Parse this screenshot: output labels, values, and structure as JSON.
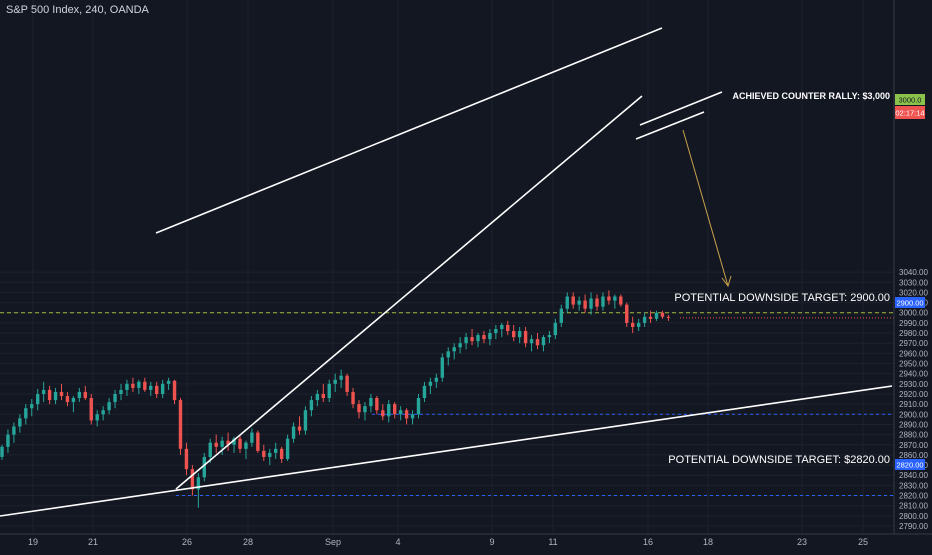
{
  "header": {
    "symbol_title": "S&P 500 Index, 240, OANDA"
  },
  "chart_data": {
    "type": "candlestick",
    "y_ticks": [
      2790,
      2800,
      2810,
      2820,
      2830,
      2840,
      2850,
      2860,
      2870,
      2880,
      2890,
      2900,
      2910,
      2920,
      2930,
      2940,
      2950,
      2960,
      2970,
      2980,
      2990,
      3000,
      3010,
      3020,
      3030,
      3040
    ],
    "y_tick_labels": [
      "2790.00",
      "2800.00",
      "2810.00",
      "2820.00",
      "2830.00",
      "2840.00",
      "2850.00",
      "2860.00",
      "2870.00",
      "2880.00",
      "2890.00",
      "2900.00",
      "2910.00",
      "2920.00",
      "2930.00",
      "2940.00",
      "2950.00",
      "2960.00",
      "2970.00",
      "2980.00",
      "2990.00",
      "3000.00",
      "3010.00",
      "3020.00",
      "3030.00",
      "3040.00"
    ],
    "ylim": [
      2785,
      3047
    ],
    "x_labels": [
      "19",
      "21",
      "26",
      "28",
      "Sep",
      "4",
      "9",
      "11",
      "16",
      "18",
      "23",
      "25"
    ],
    "price_levels": [
      {
        "value": 3000,
        "label": "3000.0",
        "color": "#8bc34a"
      },
      {
        "value": 2900,
        "label": "2900.00",
        "color": "#2962ff"
      },
      {
        "value": 2820,
        "label": "2820.00",
        "color": "#2962ff"
      }
    ],
    "current_price": {
      "value": 2995,
      "countdown": "02:17:14",
      "color": "#ef5350"
    },
    "annotations": [
      "ACHIEVED COUNTER RALLY: $3,000",
      "POTENTIAL DOWNSIDE TARGET: 2900.00",
      "POTENTIAL DOWNSIDE TARGET: $2820.00"
    ],
    "colors": {
      "up": "#26a69a",
      "down": "#ef5350",
      "background": "#131722",
      "grid": "#1e222d",
      "trendline": "#ffffff",
      "arrow": "#c8a24a",
      "rally_line": "#a5b83a",
      "target_line": "#2962ff"
    },
    "candles": [
      {
        "o": 2858,
        "h": 2870,
        "l": 2855,
        "c": 2868
      },
      {
        "o": 2868,
        "h": 2885,
        "l": 2862,
        "c": 2880
      },
      {
        "o": 2880,
        "h": 2892,
        "l": 2872,
        "c": 2888
      },
      {
        "o": 2888,
        "h": 2900,
        "l": 2882,
        "c": 2896
      },
      {
        "o": 2896,
        "h": 2910,
        "l": 2890,
        "c": 2906
      },
      {
        "o": 2906,
        "h": 2915,
        "l": 2898,
        "c": 2910
      },
      {
        "o": 2910,
        "h": 2925,
        "l": 2904,
        "c": 2920
      },
      {
        "o": 2920,
        "h": 2932,
        "l": 2912,
        "c": 2924
      },
      {
        "o": 2924,
        "h": 2928,
        "l": 2910,
        "c": 2914
      },
      {
        "o": 2914,
        "h": 2926,
        "l": 2910,
        "c": 2922
      },
      {
        "o": 2922,
        "h": 2930,
        "l": 2914,
        "c": 2918
      },
      {
        "o": 2918,
        "h": 2922,
        "l": 2908,
        "c": 2912
      },
      {
        "o": 2912,
        "h": 2918,
        "l": 2902,
        "c": 2916
      },
      {
        "o": 2916,
        "h": 2926,
        "l": 2912,
        "c": 2922
      },
      {
        "o": 2922,
        "h": 2928,
        "l": 2914,
        "c": 2916
      },
      {
        "o": 2916,
        "h": 2920,
        "l": 2890,
        "c": 2894
      },
      {
        "o": 2894,
        "h": 2904,
        "l": 2888,
        "c": 2900
      },
      {
        "o": 2900,
        "h": 2908,
        "l": 2894,
        "c": 2904
      },
      {
        "o": 2904,
        "h": 2916,
        "l": 2900,
        "c": 2912
      },
      {
        "o": 2912,
        "h": 2924,
        "l": 2906,
        "c": 2920
      },
      {
        "o": 2920,
        "h": 2930,
        "l": 2914,
        "c": 2924
      },
      {
        "o": 2924,
        "h": 2934,
        "l": 2918,
        "c": 2930
      },
      {
        "o": 2930,
        "h": 2936,
        "l": 2922,
        "c": 2926
      },
      {
        "o": 2926,
        "h": 2934,
        "l": 2920,
        "c": 2932
      },
      {
        "o": 2932,
        "h": 2936,
        "l": 2922,
        "c": 2924
      },
      {
        "o": 2924,
        "h": 2932,
        "l": 2918,
        "c": 2928
      },
      {
        "o": 2928,
        "h": 2932,
        "l": 2916,
        "c": 2920
      },
      {
        "o": 2920,
        "h": 2934,
        "l": 2916,
        "c": 2930
      },
      {
        "o": 2930,
        "h": 2936,
        "l": 2924,
        "c": 2933
      },
      {
        "o": 2933,
        "h": 2934,
        "l": 2910,
        "c": 2914
      },
      {
        "o": 2914,
        "h": 2916,
        "l": 2860,
        "c": 2866
      },
      {
        "o": 2866,
        "h": 2872,
        "l": 2840,
        "c": 2846
      },
      {
        "o": 2846,
        "h": 2850,
        "l": 2820,
        "c": 2826
      },
      {
        "o": 2826,
        "h": 2842,
        "l": 2808,
        "c": 2838
      },
      {
        "o": 2838,
        "h": 2862,
        "l": 2834,
        "c": 2858
      },
      {
        "o": 2858,
        "h": 2876,
        "l": 2852,
        "c": 2872
      },
      {
        "o": 2872,
        "h": 2880,
        "l": 2862,
        "c": 2868
      },
      {
        "o": 2868,
        "h": 2878,
        "l": 2860,
        "c": 2874
      },
      {
        "o": 2874,
        "h": 2882,
        "l": 2864,
        "c": 2870
      },
      {
        "o": 2870,
        "h": 2878,
        "l": 2862,
        "c": 2876
      },
      {
        "o": 2876,
        "h": 2880,
        "l": 2862,
        "c": 2866
      },
      {
        "o": 2866,
        "h": 2874,
        "l": 2856,
        "c": 2872
      },
      {
        "o": 2872,
        "h": 2886,
        "l": 2868,
        "c": 2882
      },
      {
        "o": 2882,
        "h": 2884,
        "l": 2862,
        "c": 2864
      },
      {
        "o": 2864,
        "h": 2870,
        "l": 2854,
        "c": 2858
      },
      {
        "o": 2858,
        "h": 2866,
        "l": 2850,
        "c": 2862
      },
      {
        "o": 2862,
        "h": 2872,
        "l": 2856,
        "c": 2866
      },
      {
        "o": 2866,
        "h": 2868,
        "l": 2852,
        "c": 2856
      },
      {
        "o": 2856,
        "h": 2880,
        "l": 2854,
        "c": 2876
      },
      {
        "o": 2876,
        "h": 2892,
        "l": 2872,
        "c": 2888
      },
      {
        "o": 2888,
        "h": 2898,
        "l": 2880,
        "c": 2884
      },
      {
        "o": 2884,
        "h": 2908,
        "l": 2880,
        "c": 2904
      },
      {
        "o": 2904,
        "h": 2918,
        "l": 2898,
        "c": 2914
      },
      {
        "o": 2914,
        "h": 2924,
        "l": 2908,
        "c": 2920
      },
      {
        "o": 2920,
        "h": 2930,
        "l": 2912,
        "c": 2916
      },
      {
        "o": 2916,
        "h": 2934,
        "l": 2912,
        "c": 2930
      },
      {
        "o": 2930,
        "h": 2940,
        "l": 2922,
        "c": 2934
      },
      {
        "o": 2934,
        "h": 2944,
        "l": 2926,
        "c": 2938
      },
      {
        "o": 2938,
        "h": 2940,
        "l": 2918,
        "c": 2922
      },
      {
        "o": 2922,
        "h": 2926,
        "l": 2906,
        "c": 2910
      },
      {
        "o": 2910,
        "h": 2914,
        "l": 2896,
        "c": 2902
      },
      {
        "o": 2902,
        "h": 2912,
        "l": 2894,
        "c": 2908
      },
      {
        "o": 2908,
        "h": 2920,
        "l": 2902,
        "c": 2916
      },
      {
        "o": 2916,
        "h": 2918,
        "l": 2900,
        "c": 2904
      },
      {
        "o": 2904,
        "h": 2910,
        "l": 2894,
        "c": 2898
      },
      {
        "o": 2898,
        "h": 2914,
        "l": 2892,
        "c": 2910
      },
      {
        "o": 2910,
        "h": 2912,
        "l": 2896,
        "c": 2900
      },
      {
        "o": 2900,
        "h": 2908,
        "l": 2894,
        "c": 2904
      },
      {
        "o": 2904,
        "h": 2906,
        "l": 2890,
        "c": 2896
      },
      {
        "o": 2896,
        "h": 2904,
        "l": 2890,
        "c": 2900
      },
      {
        "o": 2900,
        "h": 2920,
        "l": 2896,
        "c": 2916
      },
      {
        "o": 2916,
        "h": 2932,
        "l": 2912,
        "c": 2928
      },
      {
        "o": 2928,
        "h": 2936,
        "l": 2920,
        "c": 2932
      },
      {
        "o": 2932,
        "h": 2940,
        "l": 2926,
        "c": 2936
      },
      {
        "o": 2936,
        "h": 2960,
        "l": 2932,
        "c": 2956
      },
      {
        "o": 2956,
        "h": 2966,
        "l": 2948,
        "c": 2962
      },
      {
        "o": 2962,
        "h": 2970,
        "l": 2954,
        "c": 2966
      },
      {
        "o": 2966,
        "h": 2976,
        "l": 2960,
        "c": 2970
      },
      {
        "o": 2970,
        "h": 2980,
        "l": 2964,
        "c": 2976
      },
      {
        "o": 2976,
        "h": 2984,
        "l": 2968,
        "c": 2972
      },
      {
        "o": 2972,
        "h": 2980,
        "l": 2966,
        "c": 2978
      },
      {
        "o": 2978,
        "h": 2982,
        "l": 2970,
        "c": 2974
      },
      {
        "o": 2974,
        "h": 2984,
        "l": 2968,
        "c": 2980
      },
      {
        "o": 2980,
        "h": 2988,
        "l": 2974,
        "c": 2984
      },
      {
        "o": 2984,
        "h": 2990,
        "l": 2976,
        "c": 2988
      },
      {
        "o": 2988,
        "h": 2992,
        "l": 2978,
        "c": 2982
      },
      {
        "o": 2982,
        "h": 2988,
        "l": 2972,
        "c": 2976
      },
      {
        "o": 2976,
        "h": 2986,
        "l": 2970,
        "c": 2982
      },
      {
        "o": 2982,
        "h": 2986,
        "l": 2966,
        "c": 2970
      },
      {
        "o": 2970,
        "h": 2978,
        "l": 2962,
        "c": 2974
      },
      {
        "o": 2974,
        "h": 2980,
        "l": 2964,
        "c": 2968
      },
      {
        "o": 2968,
        "h": 2978,
        "l": 2962,
        "c": 2976
      },
      {
        "o": 2976,
        "h": 2982,
        "l": 2970,
        "c": 2978
      },
      {
        "o": 2978,
        "h": 2994,
        "l": 2974,
        "c": 2990
      },
      {
        "o": 2990,
        "h": 3008,
        "l": 2986,
        "c": 3004
      },
      {
        "o": 3004,
        "h": 3020,
        "l": 3000,
        "c": 3016
      },
      {
        "o": 3016,
        "h": 3020,
        "l": 3004,
        "c": 3008
      },
      {
        "o": 3008,
        "h": 3016,
        "l": 3002,
        "c": 3012
      },
      {
        "o": 3012,
        "h": 3018,
        "l": 3000,
        "c": 3004
      },
      {
        "o": 3004,
        "h": 3020,
        "l": 2998,
        "c": 3014
      },
      {
        "o": 3014,
        "h": 3018,
        "l": 3002,
        "c": 3006
      },
      {
        "o": 3006,
        "h": 3020,
        "l": 3002,
        "c": 3016
      },
      {
        "o": 3016,
        "h": 3022,
        "l": 3008,
        "c": 3012
      },
      {
        "o": 3012,
        "h": 3018,
        "l": 3004,
        "c": 3016
      },
      {
        "o": 3016,
        "h": 3018,
        "l": 3006,
        "c": 3008
      },
      {
        "o": 3008,
        "h": 3010,
        "l": 2986,
        "c": 2990
      },
      {
        "o": 2990,
        "h": 2996,
        "l": 2980,
        "c": 2986
      },
      {
        "o": 2986,
        "h": 2994,
        "l": 2982,
        "c": 2990
      },
      {
        "o": 2990,
        "h": 3000,
        "l": 2986,
        "c": 2996
      },
      {
        "o": 2996,
        "h": 3002,
        "l": 2990,
        "c": 2994
      },
      {
        "o": 2994,
        "h": 3002,
        "l": 2992,
        "c": 3000
      },
      {
        "o": 3000,
        "h": 3002,
        "l": 2994,
        "c": 2996
      },
      {
        "o": 2996,
        "h": 2998,
        "l": 2992,
        "c": 2995
      }
    ]
  }
}
